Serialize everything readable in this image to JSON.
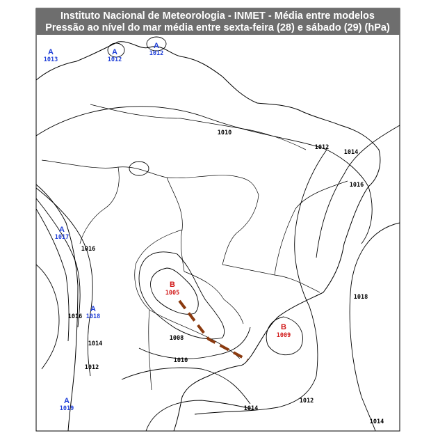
{
  "header": {
    "title": "Instituto Nacional de Meteorologia - INMET - Média entre modelos",
    "subtitle": "Pressão ao nível do mar média entre sexta-feira (28) e sábado (29) (hPa)"
  },
  "pressure_centers": [
    {
      "symbol": "A",
      "value": "1013"
    },
    {
      "symbol": "A",
      "value": "1012"
    },
    {
      "symbol": "A",
      "value": "1012"
    },
    {
      "symbol": "A",
      "value": "1017"
    },
    {
      "symbol": "A",
      "value": "1018"
    },
    {
      "symbol": "A",
      "value": "1019"
    },
    {
      "symbol": "B",
      "value": "1005"
    },
    {
      "symbol": "B",
      "value": "1009"
    }
  ],
  "isobar_labels": [
    "1010",
    "1012",
    "1014",
    "1016",
    "1016",
    "1016",
    "1014",
    "1012",
    "1008",
    "1010",
    "1018",
    "1014",
    "1012",
    "1014"
  ]
}
